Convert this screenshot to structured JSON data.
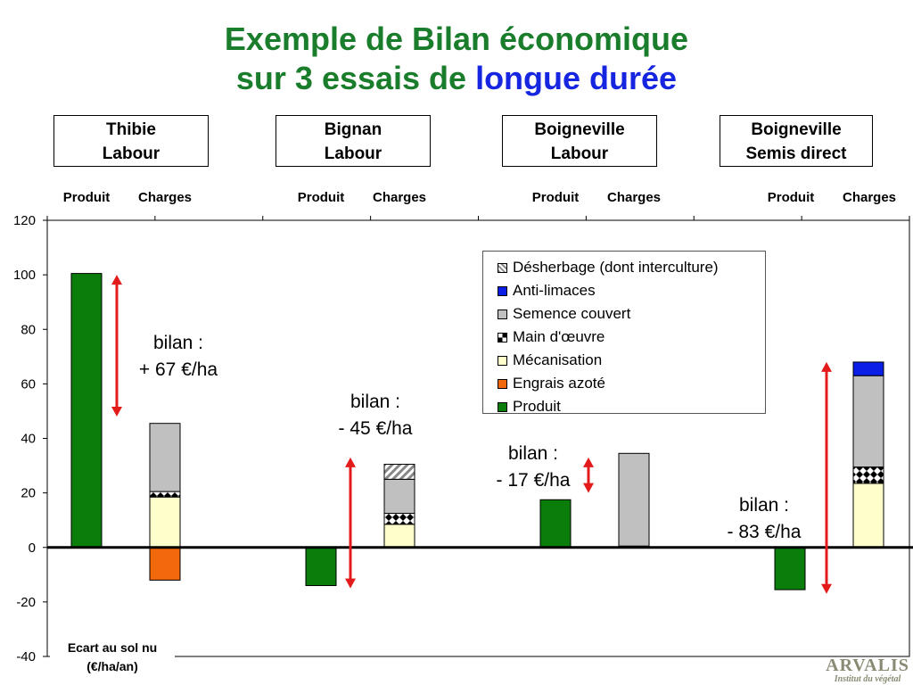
{
  "title": {
    "line1": "Exemple de Bilan économique",
    "line2_prefix": "sur 3 essais de ",
    "line2_highlight": "longue durée"
  },
  "sites": [
    {
      "name": "Thibie",
      "practice": "Labour"
    },
    {
      "name": "Bignan",
      "practice": "Labour"
    },
    {
      "name": "Boigneville",
      "practice": "Labour"
    },
    {
      "name": "Boigneville",
      "practice": "Semis direct"
    }
  ],
  "bilans": [
    {
      "label": "bilan :",
      "value": "+ 67 €/ha"
    },
    {
      "label": "bilan :",
      "value": "- 45 €/ha"
    },
    {
      "label": "bilan :",
      "value": "- 17 €/ha"
    },
    {
      "label": "bilan :",
      "value": "- 83 €/ha"
    }
  ],
  "footnote": "Ecart au sol nu (€/ha/an)",
  "logo": {
    "name": "ARVALIS",
    "tagline": "Institut du végétal"
  },
  "colors": {
    "title": "#1a7d2b",
    "title_highlight": "#1626e0",
    "arrow": "#e31b1b"
  },
  "chart_data": {
    "type": "bar",
    "stacked": true,
    "categories": [
      "Produit",
      "Charges",
      "Produit",
      "Charges",
      "Produit",
      "Charges",
      "Produit",
      "Charges"
    ],
    "ylim": [
      -40,
      120
    ],
    "yticks": [
      -40,
      -20,
      0,
      20,
      40,
      60,
      80,
      100,
      120
    ],
    "xlabel": "",
    "ylabel": "",
    "grid": false,
    "legend_position": "top-right",
    "series": [
      {
        "name": "Produit",
        "color": "#0a7d0a",
        "pattern": "solid",
        "values": [
          100.5,
          0,
          -14,
          0,
          17.5,
          0,
          -15.5,
          0
        ]
      },
      {
        "name": "Engrais azoté",
        "color": "#f2690d",
        "pattern": "solid",
        "values": [
          0,
          -12,
          0,
          0,
          0,
          0,
          0,
          0
        ]
      },
      {
        "name": "Mécanisation",
        "color": "#ffffcc",
        "pattern": "solid",
        "values": [
          0,
          18.5,
          0,
          8.5,
          0,
          0.5,
          0,
          23.5
        ]
      },
      {
        "name": "Main d'œuvre",
        "color": "#ffffff",
        "pattern": "diamonds",
        "values": [
          0,
          2,
          0,
          4,
          0,
          0,
          0,
          6
        ]
      },
      {
        "name": "Semence couvert",
        "color": "#c0c0c0",
        "pattern": "solid",
        "values": [
          0,
          25,
          0,
          12.5,
          0,
          34,
          0,
          33.5
        ]
      },
      {
        "name": "Anti-limaces",
        "color": "#0a1ee6",
        "pattern": "solid",
        "values": [
          0,
          0,
          0,
          0,
          0,
          0,
          0,
          5
        ]
      },
      {
        "name": "Désherbage (dont interculture)",
        "color": "#ffffff",
        "pattern": "hatch",
        "values": [
          0,
          0,
          0,
          5.5,
          0,
          0,
          0,
          0
        ]
      }
    ],
    "legend_order": [
      "Désherbage (dont interculture)",
      "Anti-limaces",
      "Semence couvert",
      "Main d'œuvre",
      "Mécanisation",
      "Engrais azoté",
      "Produit"
    ],
    "annotations": [
      {
        "type": "double-arrow",
        "from": 100,
        "to": 48
      },
      {
        "type": "double-arrow",
        "from": 33,
        "to": -15
      },
      {
        "type": "double-arrow",
        "from": 33,
        "to": 20
      },
      {
        "type": "double-arrow",
        "from": 68,
        "to": -17
      }
    ]
  }
}
